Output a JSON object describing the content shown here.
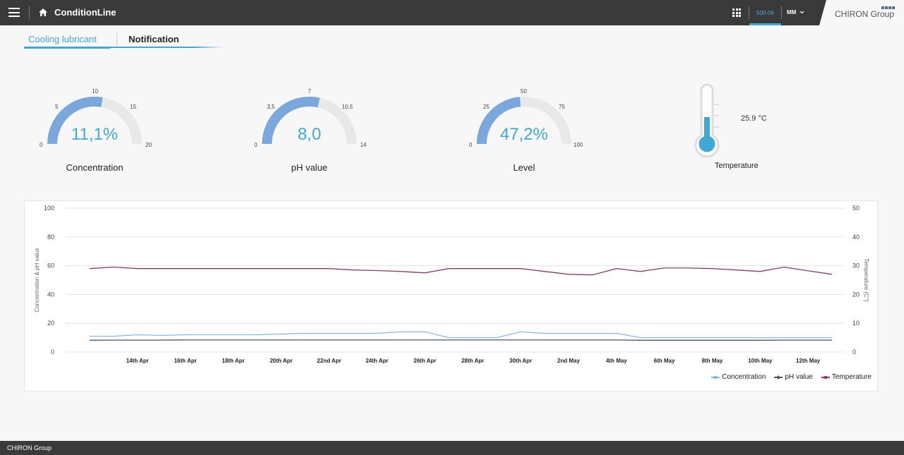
{
  "header": {
    "app_title": "ConditionLine",
    "machine_tab": "500-08",
    "user": "MM",
    "logo_text": "CHIRON Group"
  },
  "tabs": [
    {
      "label": "Cooling lubricant",
      "active": true
    },
    {
      "label": "Notification",
      "active": false
    }
  ],
  "gauges": [
    {
      "label": "Concentration",
      "value_text": "11,1%",
      "value": 11.1,
      "min": 0,
      "max": 20,
      "ticks": [
        "0",
        "5",
        "10",
        "15",
        "20"
      ]
    },
    {
      "label": "pH value",
      "value_text": "8,0",
      "value": 8.0,
      "min": 0,
      "max": 14,
      "ticks": [
        "0",
        "3,5",
        "7",
        "10,5",
        "14"
      ]
    },
    {
      "label": "Level",
      "value_text": "47,2%",
      "value": 47.2,
      "min": 0,
      "max": 100,
      "ticks": [
        "0",
        "25",
        "50",
        "75",
        "100"
      ]
    }
  ],
  "temperature": {
    "label": "Temperature",
    "value_text": "25.9 °C",
    "value": 25.9
  },
  "colors": {
    "accent": "#3fa9d6",
    "gauge_fill": "#7aa7dc",
    "gauge_track": "#e8e8e8",
    "concentration": "#88b9e6",
    "ph": "#4a5560",
    "temperature": "#8c3a69"
  },
  "chart_data": {
    "type": "line",
    "ylabel": "Concentration & pH value",
    "y2label": "Temperature (C°)",
    "ylim": [
      0,
      100
    ],
    "y2lim": [
      0,
      50
    ],
    "yticks": [
      "100",
      "80",
      "60",
      "40",
      "20",
      "0"
    ],
    "y2ticks": [
      "50",
      "40",
      "30",
      "20",
      "10",
      "0"
    ],
    "xticks": [
      "14th Apr",
      "16th Apr",
      "18th Apr",
      "20th Apr",
      "22nd Apr",
      "24th Apr",
      "26th Apr",
      "28th Apr",
      "30th Apr",
      "2nd May",
      "4th May",
      "6th May",
      "8th May",
      "10th May",
      "12th May"
    ],
    "x_days": [
      12,
      13,
      14,
      15,
      16,
      17,
      18,
      19,
      20,
      21,
      22,
      23,
      24,
      25,
      26,
      27,
      28,
      29,
      30,
      31,
      32,
      33,
      34,
      35,
      36,
      37,
      38,
      39,
      40,
      41,
      42,
      43
    ],
    "legend_position": "bottom-right",
    "grid": true,
    "series": [
      {
        "name": "Concentration",
        "axis": "left",
        "color": "#88b9e6",
        "values": [
          11,
          11,
          12,
          11.5,
          12,
          12,
          12,
          12,
          12.5,
          13,
          13,
          13,
          13,
          14,
          14,
          10,
          10,
          10,
          14,
          13,
          13,
          13,
          13,
          10,
          10,
          10,
          10,
          10,
          10,
          10,
          10,
          10
        ]
      },
      {
        "name": "pH value",
        "axis": "left",
        "color": "#4a5560",
        "values": [
          8.2,
          8.3,
          8.3,
          8.3,
          8.4,
          8.4,
          8.4,
          8.4,
          8.4,
          8.4,
          8.4,
          8.4,
          8.4,
          8.4,
          8.4,
          8.4,
          8.4,
          8.4,
          8.4,
          8.4,
          8.4,
          8.4,
          8.4,
          8.2,
          8.2,
          8.2,
          8.2,
          8.2,
          8.2,
          8.3,
          8.3,
          8.3
        ]
      },
      {
        "name": "Temperature",
        "axis": "right",
        "color": "#8c3a69",
        "values": [
          29,
          29.5,
          29,
          29,
          29,
          29,
          29,
          29,
          29,
          29,
          29,
          28.5,
          28.3,
          28,
          27.5,
          29,
          29,
          29,
          29,
          28,
          27,
          26.8,
          29,
          28,
          29.2,
          29.2,
          29,
          28.5,
          28,
          29.5,
          28.2,
          27
        ]
      }
    ]
  },
  "footer": {
    "text": "CHIRON Group"
  }
}
